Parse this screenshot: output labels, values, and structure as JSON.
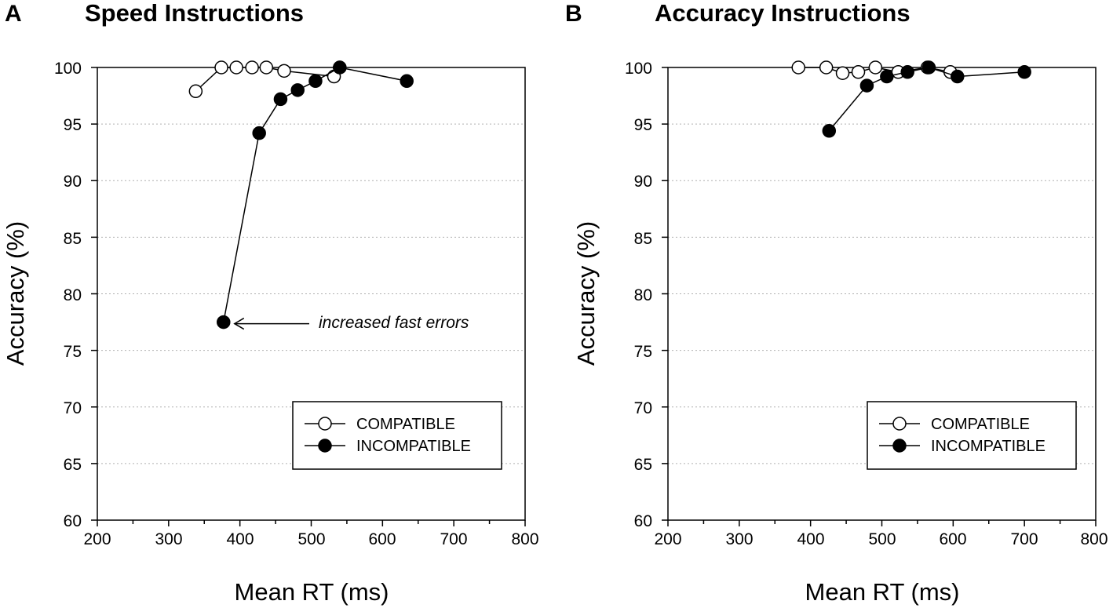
{
  "chart_data": [
    {
      "type": "line",
      "panel_letter": "A",
      "title": "Speed Instructions",
      "xlabel": "Mean RT (ms)",
      "ylabel": "Accuracy (%)",
      "xlim": [
        200,
        800
      ],
      "ylim": [
        60,
        100
      ],
      "xticks": [
        "200",
        "300",
        "400",
        "500",
        "600",
        "700",
        "800"
      ],
      "yticks": [
        "60",
        "65",
        "70",
        "75",
        "80",
        "85",
        "90",
        "95",
        "100"
      ],
      "grid": "horizontal dotted",
      "legend_position": "bottom-right",
      "series": [
        {
          "name": "COMPATIBLE",
          "marker": "open-circle",
          "points": [
            [
              338,
              97.9
            ],
            [
              374,
              100
            ],
            [
              395,
              100
            ],
            [
              417,
              100
            ],
            [
              437,
              100
            ],
            [
              462,
              99.7
            ],
            [
              532,
              99.2
            ],
            [
              540,
              100
            ]
          ]
        },
        {
          "name": "INCOMPATIBLE",
          "marker": "filled-circle",
          "points": [
            [
              377,
              77.5
            ],
            [
              427,
              94.2
            ],
            [
              457,
              97.2
            ],
            [
              481,
              98.0
            ],
            [
              506,
              98.8
            ],
            [
              540,
              100
            ],
            [
              634,
              98.8
            ]
          ]
        }
      ],
      "annotation": {
        "text": "increased fast errors",
        "target": [
          377,
          77.5
        ]
      }
    },
    {
      "type": "line",
      "panel_letter": "B",
      "title": "Accuracy Instructions",
      "xlabel": "Mean RT (ms)",
      "ylabel": "Accuracy (%)",
      "xlim": [
        200,
        800
      ],
      "ylim": [
        60,
        100
      ],
      "xticks": [
        "200",
        "300",
        "400",
        "500",
        "600",
        "700",
        "800"
      ],
      "yticks": [
        "60",
        "65",
        "70",
        "75",
        "80",
        "85",
        "90",
        "95",
        "100"
      ],
      "grid": "horizontal dotted",
      "legend_position": "bottom-right",
      "series": [
        {
          "name": "COMPATIBLE",
          "marker": "open-circle",
          "points": [
            [
              383,
              100
            ],
            [
              422,
              100
            ],
            [
              445,
              99.5
            ],
            [
              467,
              99.6
            ],
            [
              491,
              100
            ],
            [
              523,
              99.6
            ],
            [
              564,
              100
            ],
            [
              596,
              99.6
            ]
          ]
        },
        {
          "name": "INCOMPATIBLE",
          "marker": "filled-circle",
          "points": [
            [
              426,
              94.4
            ],
            [
              479,
              98.4
            ],
            [
              507,
              99.2
            ],
            [
              536,
              99.6
            ],
            [
              566,
              100
            ],
            [
              606,
              99.2
            ],
            [
              700,
              99.6
            ]
          ]
        }
      ]
    }
  ]
}
